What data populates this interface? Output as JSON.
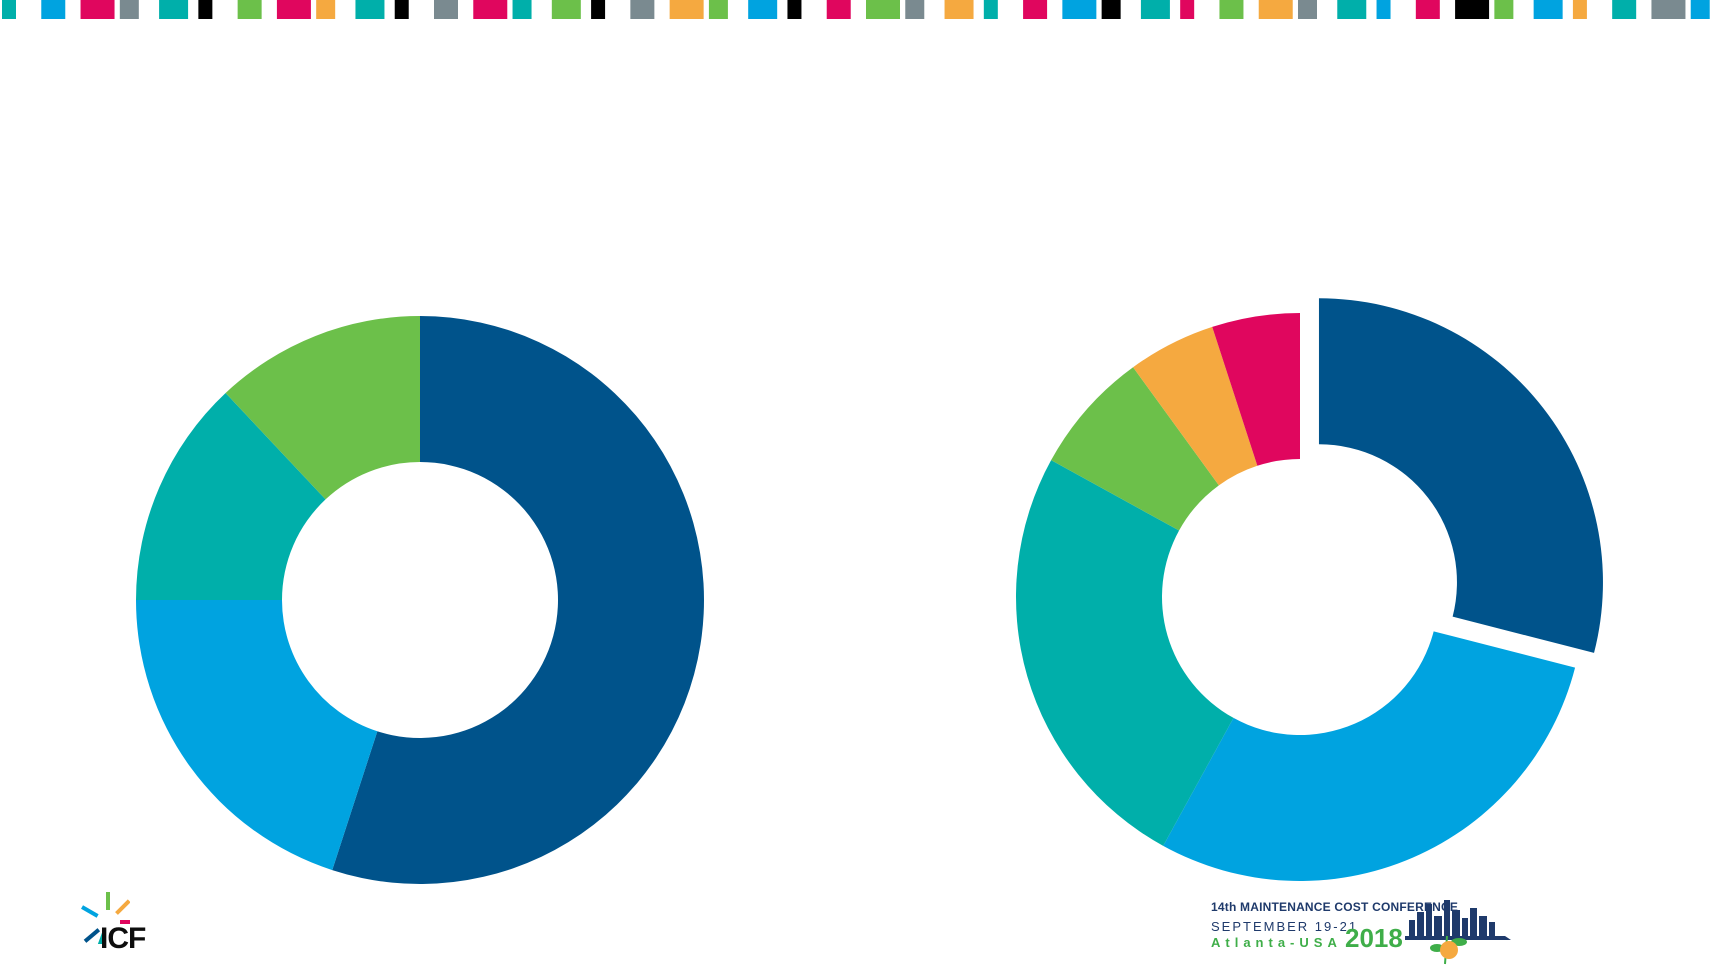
{
  "chart_data": [
    {
      "type": "pie",
      "categories": [
        "",
        "",
        "",
        ""
      ],
      "values": [
        55,
        20,
        13,
        12
      ],
      "colors": [
        "#00538b",
        "#00a3e0",
        "#00afaa",
        "#6cc04a"
      ],
      "exploded": [
        false,
        false,
        false,
        false
      ],
      "title": ""
    },
    {
      "type": "pie",
      "categories": [
        "",
        "",
        "",
        "",
        "",
        ""
      ],
      "values": [
        29,
        29,
        25,
        7,
        5,
        5
      ],
      "colors": [
        "#00538b",
        "#00a3e0",
        "#00afaa",
        "#6cc04a",
        "#f5a940",
        "#e0065e"
      ],
      "exploded": [
        true,
        false,
        false,
        false,
        false,
        false
      ],
      "title": ""
    }
  ],
  "strip_colors": [
    "#00afaa",
    "#00a3e0",
    "#e0065e",
    "#7a8a90",
    "#00afaa",
    "#000000",
    "#6cc04a",
    "#e0065e",
    "#f5a940",
    "#00afaa",
    "#000000",
    "#7a8a90",
    "#e0065e",
    "#00afaa",
    "#6cc04a",
    "#000000",
    "#7a8a90",
    "#f5a940",
    "#6cc04a",
    "#00a3e0",
    "#000000",
    "#e0065e",
    "#6cc04a",
    "#7a8a90",
    "#f5a940",
    "#00afaa",
    "#e0065e",
    "#00a3e0",
    "#000000",
    "#00afaa",
    "#e0065e",
    "#6cc04a",
    "#f5a940",
    "#7a8a90",
    "#00afaa",
    "#00a3e0",
    "#e0065e",
    "#000000",
    "#6cc04a",
    "#00a3e0",
    "#f5a940",
    "#00afaa",
    "#7a8a90",
    "#00a3e0"
  ],
  "icf_logo": {
    "text": "ICF",
    "ray_colors": [
      "#00a3e0",
      "#6cc04a",
      "#f5a940",
      "#e0065e",
      "#00afaa",
      "#00538b"
    ]
  },
  "conference_logo": {
    "line1": "14th MAINTENANCE COST CONFERENCE",
    "line2": "SEPTEMBER 19-21",
    "line3": "Atlanta-USA",
    "year": "2018",
    "skyline_color": "#1f3a6b",
    "accent_color": "#3fae49"
  }
}
